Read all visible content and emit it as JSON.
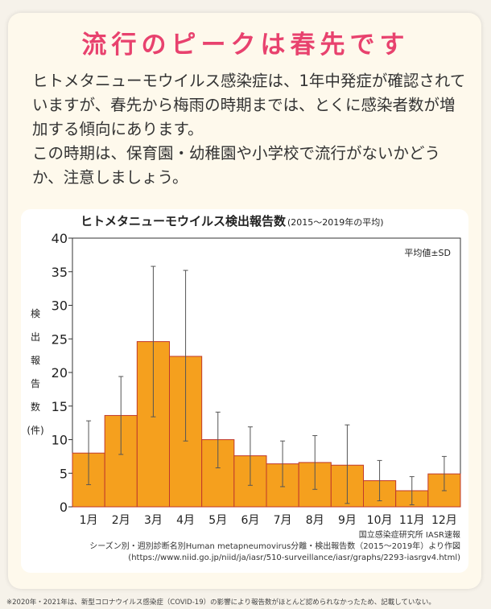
{
  "heading": "流行のピークは春先です",
  "paragraphs": [
    "ヒトメタニューモウイルス感染症は、1年中発症が確認されていますが、春先から梅雨の時期までは、とくに感染者数が増加する傾向にあります。",
    "この時期は、保育園・幼稚園や小学校で流行がないかどうか、注意しましょう。"
  ],
  "chart_data": {
    "type": "bar",
    "title": "ヒトメタニューモウイルス検出報告数",
    "title_note": "(2015〜2019年の平均)",
    "ylabel_chars": [
      "検",
      "出",
      "報",
      "告",
      "数",
      "(件)"
    ],
    "xlabel": "",
    "legend_note": "平均値±SD",
    "categories": [
      "1月",
      "2月",
      "3月",
      "4月",
      "5月",
      "6月",
      "7月",
      "8月",
      "9月",
      "10月",
      "11月",
      "12月"
    ],
    "values": [
      8.0,
      13.6,
      24.6,
      22.4,
      10.0,
      7.6,
      6.4,
      6.6,
      6.2,
      3.9,
      2.4,
      4.9
    ],
    "sd_upper": [
      12.8,
      19.4,
      35.8,
      35.2,
      14.1,
      11.9,
      9.8,
      10.6,
      12.2,
      6.9,
      4.5,
      7.5
    ],
    "sd_lower": [
      3.3,
      7.8,
      13.4,
      9.8,
      5.8,
      3.2,
      3.0,
      2.6,
      0.5,
      0.9,
      0.3,
      2.4
    ],
    "ylim": [
      0,
      40
    ],
    "yticks": [
      0,
      5,
      10,
      15,
      20,
      25,
      30,
      35,
      40
    ],
    "bar_color": "#f5a01e",
    "bar_edge_color": "#c0392b",
    "source_lines": [
      "国立感染症研究所 IASR速報",
      "シーズン別・週別診断名別Human metapneumovirus分離・検出報告数（2015〜2019年）より作図",
      "(https://www.niid.go.jp/niid/ja/iasr/510-surveillance/iasr/graphs/2293-iasrgv4.html)"
    ]
  },
  "footnote": "※2020年・2021年は、新型コロナウイルス感染症（COVID-19）の影響により報告数がほとんど認められなかったため、記載していない。",
  "colors": {
    "heading": "#e8426e",
    "text": "#333333",
    "background": "#fef9ec"
  }
}
